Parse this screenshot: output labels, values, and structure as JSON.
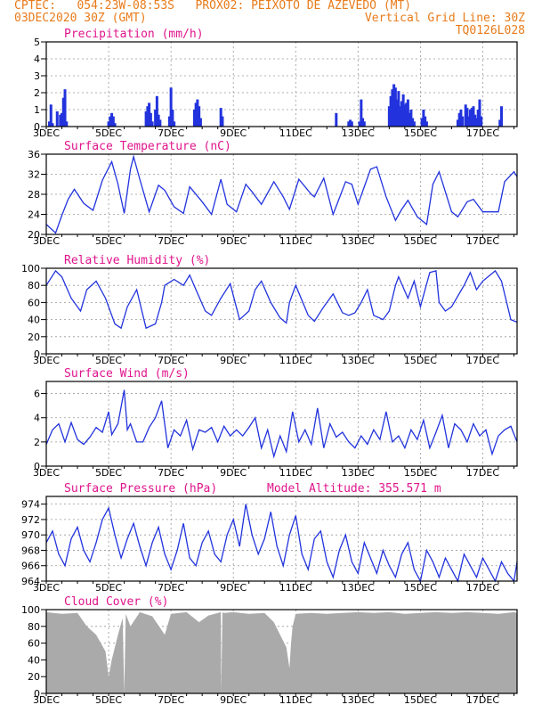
{
  "header": {
    "line1_left": "CPTEC:   054:23W-08:53S   PROX02: PEIXOTO DE AZEVEDO (MT)",
    "line2_left": "03DEC2020 30Z (GMT)",
    "line2_right": "Vertical Grid Line: 30Z",
    "line3_right": "TQ0126L028"
  },
  "colors": {
    "header": "#e87b1a",
    "title": "#e0148c",
    "series": "#2233dd",
    "cloud": "#aaaaaa",
    "grid": "#999999"
  },
  "x_axis": {
    "day_start": 3,
    "day_end": 18.1,
    "tick_labels": [
      "3DEC",
      "5DEC",
      "7DEC",
      "9DEC",
      "11DEC",
      "13DEC",
      "15DEC",
      "17DEC"
    ],
    "tick_days": [
      3,
      5,
      7,
      9,
      11,
      13,
      15,
      17
    ]
  },
  "chart_data": [
    {
      "type": "bar",
      "title": "Precipitation  (mm/h)",
      "ylim": [
        0,
        5
      ],
      "yticks": [
        "0",
        "1",
        "2",
        "3",
        "4",
        "5"
      ],
      "x": [
        3.1,
        3.15,
        3.2,
        3.35,
        3.45,
        3.5,
        3.55,
        3.6,
        3.65,
        5.0,
        5.05,
        5.1,
        5.15,
        5.2,
        6.2,
        6.25,
        6.3,
        6.35,
        6.4,
        6.5,
        6.55,
        6.6,
        6.65,
        6.95,
        7.0,
        7.05,
        7.1,
        7.75,
        7.8,
        7.85,
        7.9,
        7.95,
        8.6,
        8.65,
        12.3,
        12.7,
        12.75,
        12.8,
        13.05,
        13.1,
        13.15,
        13.2,
        14.0,
        14.05,
        14.1,
        14.15,
        14.2,
        14.25,
        14.3,
        14.35,
        14.4,
        14.45,
        14.5,
        14.55,
        14.6,
        14.65,
        14.7,
        14.75,
        14.8,
        15.05,
        15.1,
        15.15,
        15.2,
        16.2,
        16.25,
        16.3,
        16.35,
        16.45,
        16.5,
        16.55,
        16.6,
        16.65,
        16.7,
        16.75,
        16.8,
        16.85,
        16.9,
        16.95,
        17.55,
        17.6
      ],
      "values": [
        0.3,
        1.3,
        0.2,
        0.9,
        0.7,
        0.8,
        1.7,
        2.2,
        0.3,
        0.3,
        0.6,
        0.8,
        0.6,
        0.2,
        0.9,
        1.2,
        1.4,
        0.8,
        0.3,
        1.0,
        1.8,
        0.7,
        0.4,
        0.6,
        2.3,
        1.0,
        0.3,
        1.0,
        1.4,
        1.6,
        1.2,
        0.5,
        1.1,
        0.6,
        0.8,
        0.3,
        0.4,
        0.3,
        0.3,
        1.6,
        0.5,
        0.3,
        1.2,
        1.8,
        2.2,
        2.5,
        2.3,
        1.6,
        2.1,
        1.2,
        1.5,
        1.9,
        1.3,
        1.4,
        1.6,
        0.8,
        1.0,
        0.5,
        0.3,
        0.5,
        1.0,
        0.6,
        0.3,
        0.4,
        0.8,
        1.0,
        0.6,
        1.3,
        1.1,
        0.6,
        1.0,
        1.1,
        1.2,
        0.7,
        0.5,
        1.0,
        1.6,
        0.6,
        0.4,
        1.2
      ]
    },
    {
      "type": "line",
      "title": "Surface Temperature (nC)",
      "ylim": [
        20,
        36
      ],
      "yticks": [
        "20",
        "24",
        "28",
        "32",
        "36"
      ],
      "x": [
        3.0,
        3.3,
        3.5,
        3.7,
        3.9,
        4.2,
        4.5,
        4.8,
        5.1,
        5.3,
        5.5,
        5.7,
        5.8,
        6.0,
        6.3,
        6.6,
        6.8,
        7.1,
        7.4,
        7.6,
        8.0,
        8.3,
        8.6,
        8.8,
        9.1,
        9.4,
        9.6,
        9.9,
        10.3,
        10.6,
        10.8,
        11.1,
        11.5,
        11.6,
        11.9,
        12.2,
        12.6,
        12.8,
        13.0,
        13.4,
        13.6,
        13.9,
        14.2,
        14.4,
        14.6,
        14.9,
        15.2,
        15.4,
        15.6,
        16.0,
        16.2,
        16.5,
        16.7,
        17.0,
        17.5,
        17.7,
        18.0,
        18.1
      ],
      "values": [
        22.0,
        20.3,
        23.8,
        27.0,
        29.0,
        26.2,
        24.8,
        30.8,
        34.5,
        30.0,
        24.2,
        33.0,
        35.5,
        31.0,
        24.5,
        29.8,
        28.8,
        25.5,
        24.2,
        29.5,
        26.5,
        24.0,
        31.0,
        26.0,
        24.5,
        30.0,
        28.5,
        26.0,
        30.5,
        27.5,
        25.0,
        31.0,
        28.0,
        27.5,
        31.2,
        24.0,
        30.5,
        30.0,
        26.0,
        33.0,
        33.5,
        27.5,
        22.8,
        25.0,
        26.8,
        23.5,
        22.0,
        30.0,
        32.5,
        24.5,
        23.5,
        26.5,
        27.0,
        24.5,
        24.5,
        30.5,
        32.5,
        31.5
      ]
    },
    {
      "type": "line",
      "title": "Relative Humidity (%)",
      "ylim": [
        0,
        100
      ],
      "yticks": [
        "0",
        "20",
        "40",
        "60",
        "80",
        "100"
      ],
      "x": [
        3.0,
        3.3,
        3.5,
        3.8,
        4.1,
        4.3,
        4.6,
        4.9,
        5.2,
        5.4,
        5.6,
        5.9,
        6.2,
        6.5,
        6.7,
        6.8,
        7.1,
        7.4,
        7.6,
        7.8,
        8.1,
        8.3,
        8.6,
        8.9,
        9.2,
        9.5,
        9.7,
        9.9,
        10.2,
        10.5,
        10.7,
        10.8,
        11.0,
        11.4,
        11.6,
        11.9,
        12.2,
        12.5,
        12.7,
        12.9,
        13.1,
        13.3,
        13.5,
        13.8,
        14.0,
        14.2,
        14.3,
        14.6,
        14.8,
        15.0,
        15.3,
        15.5,
        15.6,
        15.8,
        16.0,
        16.4,
        16.6,
        16.8,
        17.0,
        17.4,
        17.6,
        17.9,
        18.1
      ],
      "values": [
        80.0,
        97.0,
        90.0,
        65.0,
        50.0,
        75.0,
        85.0,
        65.0,
        35.0,
        30.0,
        55.0,
        75.0,
        30.0,
        35.0,
        60.0,
        80.0,
        87.0,
        80.0,
        92.0,
        75.0,
        50.0,
        45.0,
        65.0,
        82.0,
        40.0,
        50.0,
        75.0,
        85.0,
        60.0,
        42.0,
        36.0,
        60.0,
        80.0,
        45.0,
        38.0,
        55.0,
        70.0,
        48.0,
        45.0,
        48.0,
        60.0,
        75.0,
        45.0,
        40.0,
        50.0,
        80.0,
        90.0,
        65.0,
        85.0,
        55.0,
        95.0,
        97.0,
        60.0,
        50.0,
        55.0,
        80.0,
        95.0,
        75.0,
        85.0,
        97.0,
        85.0,
        40.0,
        37.0
      ]
    },
    {
      "type": "line",
      "title": "Surface Wind (m/s)",
      "ylim": [
        0,
        7
      ],
      "yticks": [
        "0",
        "2",
        "4",
        "6"
      ],
      "x": [
        3.0,
        3.2,
        3.4,
        3.6,
        3.8,
        4.0,
        4.2,
        4.4,
        4.6,
        4.8,
        5.0,
        5.1,
        5.3,
        5.5,
        5.6,
        5.7,
        5.9,
        6.1,
        6.3,
        6.5,
        6.7,
        6.9,
        7.1,
        7.3,
        7.5,
        7.7,
        7.9,
        8.1,
        8.3,
        8.5,
        8.7,
        8.9,
        9.1,
        9.3,
        9.5,
        9.7,
        9.9,
        10.1,
        10.3,
        10.5,
        10.7,
        10.9,
        11.1,
        11.3,
        11.5,
        11.7,
        11.9,
        12.1,
        12.3,
        12.5,
        12.7,
        12.9,
        13.1,
        13.3,
        13.5,
        13.7,
        13.9,
        14.1,
        14.3,
        14.5,
        14.7,
        14.9,
        15.1,
        15.3,
        15.5,
        15.7,
        15.9,
        16.1,
        16.3,
        16.5,
        16.7,
        16.9,
        17.1,
        17.3,
        17.5,
        17.7,
        17.9,
        18.1
      ],
      "values": [
        1.8,
        3.0,
        3.5,
        2.0,
        3.6,
        2.2,
        1.8,
        2.4,
        3.2,
        2.8,
        4.5,
        2.6,
        3.5,
        6.3,
        3.0,
        3.5,
        2.0,
        2.0,
        3.2,
        4.0,
        5.4,
        1.5,
        3.0,
        2.5,
        3.8,
        1.4,
        3.0,
        2.8,
        3.2,
        2.0,
        3.3,
        2.5,
        3.0,
        2.5,
        3.2,
        4.0,
        1.5,
        3.0,
        0.8,
        2.5,
        1.2,
        4.5,
        2.0,
        3.0,
        1.8,
        4.8,
        1.5,
        3.5,
        2.4,
        2.8,
        2.0,
        1.5,
        2.5,
        1.8,
        3.0,
        2.2,
        4.5,
        2.0,
        2.5,
        1.5,
        3.0,
        2.2,
        3.8,
        1.5,
        2.8,
        4.2,
        1.5,
        3.5,
        3.0,
        2.0,
        3.5,
        2.5,
        3.0,
        1.0,
        2.5,
        3.0,
        3.3,
        2.0
      ]
    },
    {
      "type": "line",
      "title": "Surface Pressure (hPa)",
      "annotation": "Model Altitude: 355.571 m",
      "ylim": [
        964,
        975
      ],
      "yticks": [
        "964",
        "966",
        "968",
        "970",
        "972",
        "974"
      ],
      "x": [
        3.0,
        3.2,
        3.4,
        3.6,
        3.8,
        4.0,
        4.2,
        4.4,
        4.6,
        4.8,
        5.0,
        5.2,
        5.4,
        5.6,
        5.8,
        6.0,
        6.2,
        6.4,
        6.6,
        6.8,
        7.0,
        7.2,
        7.4,
        7.6,
        7.8,
        8.0,
        8.2,
        8.4,
        8.6,
        8.8,
        9.0,
        9.2,
        9.4,
        9.6,
        9.8,
        10.0,
        10.2,
        10.4,
        10.6,
        10.8,
        11.0,
        11.2,
        11.4,
        11.6,
        11.8,
        12.0,
        12.2,
        12.4,
        12.6,
        12.8,
        13.0,
        13.2,
        13.4,
        13.6,
        13.8,
        14.0,
        14.2,
        14.4,
        14.6,
        14.8,
        15.0,
        15.2,
        15.4,
        15.6,
        15.8,
        16.0,
        16.2,
        16.4,
        16.6,
        16.8,
        17.0,
        17.2,
        17.4,
        17.6,
        17.8,
        18.0,
        18.1
      ],
      "values": [
        969.0,
        970.5,
        967.5,
        966.0,
        969.5,
        971.0,
        968.0,
        966.5,
        969.0,
        972.0,
        973.5,
        970.0,
        967.0,
        969.5,
        971.5,
        968.5,
        966.0,
        969.0,
        971.0,
        967.5,
        965.5,
        968.0,
        971.5,
        967.0,
        966.0,
        969.0,
        970.5,
        967.5,
        966.5,
        970.0,
        972.0,
        968.5,
        974.0,
        970.0,
        967.5,
        969.5,
        973.0,
        968.5,
        966.0,
        970.0,
        972.5,
        967.5,
        965.5,
        969.5,
        970.5,
        966.5,
        964.5,
        968.0,
        970.0,
        966.5,
        965.0,
        969.0,
        967.0,
        965.0,
        968.0,
        966.0,
        964.5,
        967.5,
        969.0,
        965.5,
        964.0,
        968.0,
        966.5,
        964.5,
        967.0,
        965.5,
        964.0,
        967.5,
        966.0,
        964.5,
        967.0,
        965.5,
        964.0,
        966.5,
        965.0,
        964.0,
        966.5
      ]
    },
    {
      "type": "area",
      "title": "Cloud Cover (%)",
      "ylim": [
        0,
        100
      ],
      "yticks": [
        "0",
        "20",
        "40",
        "60",
        "80",
        "100"
      ],
      "x": [
        3.0,
        3.5,
        4.0,
        4.3,
        4.6,
        4.9,
        5.0,
        5.1,
        5.3,
        5.45,
        5.5,
        5.55,
        5.7,
        6.0,
        6.4,
        6.8,
        7.0,
        7.5,
        7.9,
        8.2,
        8.6,
        8.61,
        8.65,
        8.7,
        9.0,
        9.5,
        10.0,
        10.3,
        10.5,
        10.7,
        10.8,
        10.85,
        10.9,
        11.0,
        11.5,
        12.0,
        12.5,
        13.0,
        13.5,
        14.0,
        14.5,
        15.0,
        15.5,
        16.0,
        16.5,
        17.0,
        17.5,
        18.0,
        18.1
      ],
      "values": [
        97.0,
        95.0,
        96.0,
        80.0,
        70.0,
        50.0,
        20.0,
        40.0,
        70.0,
        90.0,
        0.0,
        95.0,
        80.0,
        97.0,
        92.0,
        70.0,
        95.0,
        97.0,
        85.0,
        93.0,
        97.0,
        0.0,
        97.0,
        96.0,
        97.0,
        95.0,
        96.0,
        85.0,
        70.0,
        55.0,
        30.0,
        60.0,
        80.0,
        95.0,
        96.0,
        95.0,
        96.0,
        97.0,
        96.0,
        97.0,
        95.0,
        96.0,
        97.0,
        96.0,
        97.0,
        96.0,
        95.0,
        97.0,
        96.0
      ]
    }
  ]
}
